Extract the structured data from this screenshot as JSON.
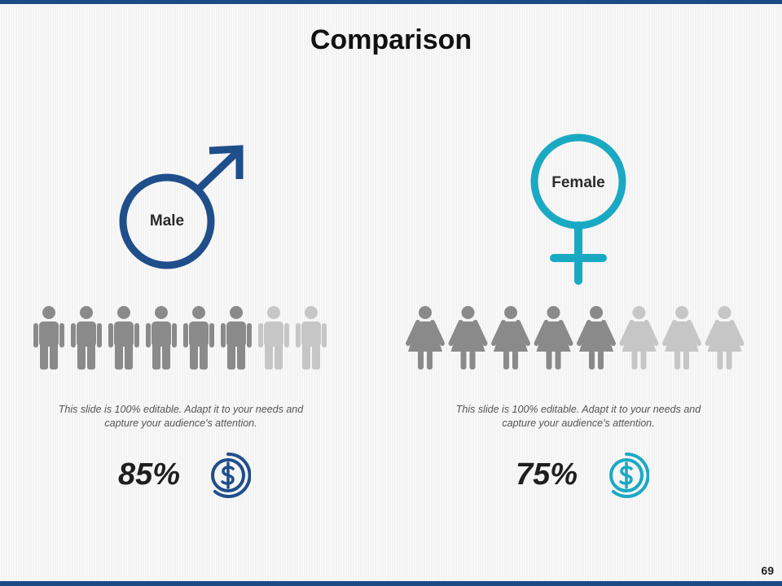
{
  "slide": {
    "title": "Comparison",
    "page_number": "69",
    "accent_color": "#1d4a86",
    "bar_color": "#1d4a86"
  },
  "male": {
    "label": "Male",
    "symbol_icon": "male-symbol-icon",
    "color": "#1f4e8b",
    "people_total": 8,
    "people_highlighted": 6,
    "highlight_color": "#8a8a8a",
    "muted_color": "#c6c6c6",
    "description": "This slide is 100% editable. Adapt it to your needs and capture your audience's attention.",
    "percent": "85%",
    "coin_icon": "dollar-coin-icon"
  },
  "female": {
    "label": "Female",
    "symbol_icon": "female-symbol-icon",
    "color": "#1aa9c3",
    "people_total": 8,
    "people_highlighted": 5,
    "highlight_color": "#8a8a8a",
    "muted_color": "#c6c6c6",
    "description": "This slide is 100% editable. Adapt it to your needs and capture your audience's attention.",
    "percent": "75%",
    "coin_icon": "dollar-coin-icon"
  }
}
